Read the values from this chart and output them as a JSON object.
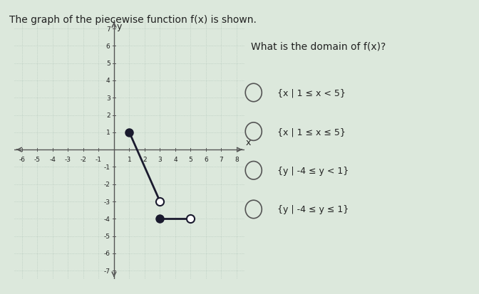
{
  "title": "The graph of the piecewise function f(x) is shown.",
  "question": "What is the domain of f(x)?",
  "choices": [
    "{x | 1 ≤ x < 5}",
    "{x | 1 ≤ x ≤ 5}",
    "{y | -4 ≤ y < 1}",
    "{y | -4 ≤ y ≤ 1}"
  ],
  "xlim": [
    -6.5,
    8.5
  ],
  "ylim": [
    -7.5,
    7.5
  ],
  "xticks": [
    -6,
    -5,
    -4,
    -3,
    -2,
    -1,
    0,
    1,
    2,
    3,
    4,
    5,
    6,
    7,
    8
  ],
  "yticks": [
    -7,
    -6,
    -5,
    -4,
    -3,
    -2,
    -1,
    0,
    1,
    2,
    3,
    4,
    5,
    6,
    7
  ],
  "segment1": {
    "x": [
      1,
      3
    ],
    "y": [
      1,
      -3
    ],
    "filled_start": true,
    "open_end": true
  },
  "segment2": {
    "x": [
      3,
      5
    ],
    "y": [
      -4,
      -4
    ],
    "filled_start": true,
    "open_end": true
  },
  "line_color": "#1a1a2e",
  "dot_filled_color": "#1a1a2e",
  "dot_open_color": "#ffffff",
  "dot_open_edge": "#1a1a2e",
  "dot_size": 8,
  "grid_color": "#b0c4b8",
  "bg_color": "#d8e8d8",
  "axis_color": "#555555",
  "text_color": "#222222",
  "title_fontsize": 10,
  "label_fontsize": 9,
  "choice_fontsize": 9
}
